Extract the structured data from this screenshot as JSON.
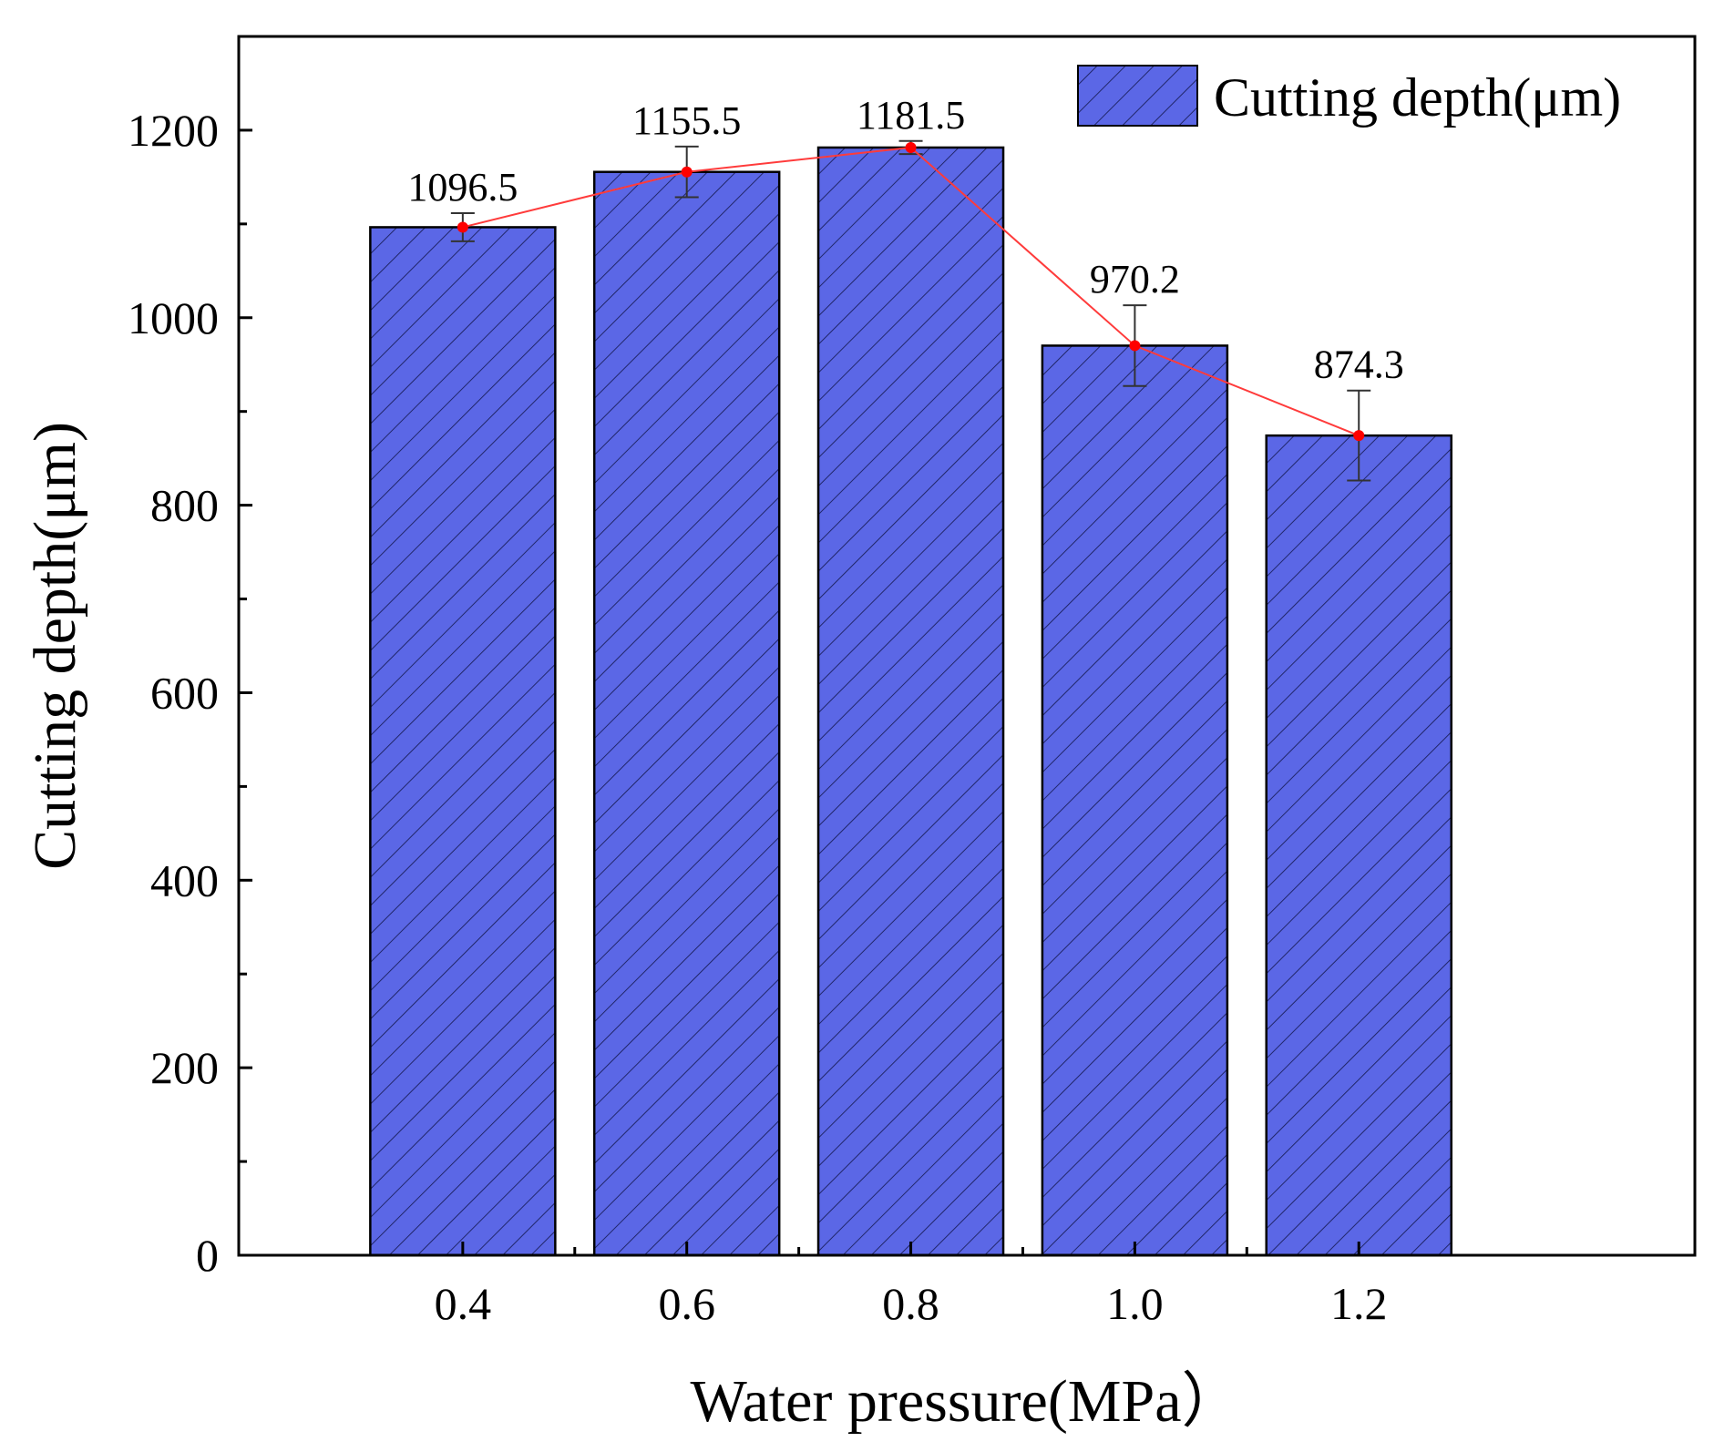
{
  "chart_data": {
    "type": "bar",
    "xlabel": "Water pressure(MPa）",
    "ylabel": "Cutting depth(μm)",
    "categories": [
      "0.4",
      "0.6",
      "0.8",
      "1.0",
      "1.2"
    ],
    "series": [
      {
        "name": "Cutting depth(μm)",
        "values": [
          1096.5,
          1155.5,
          1181.5,
          970.2,
          874.3
        ],
        "error": [
          15,
          27,
          7,
          43,
          48
        ],
        "data_labels": [
          "1096.5",
          "1155.5",
          "1181.5",
          "970.2",
          "874.3"
        ]
      }
    ],
    "ylim": [
      0,
      1300
    ],
    "yticks": [
      0,
      200,
      400,
      600,
      800,
      1000,
      1200
    ],
    "ytick_labels": [
      "0",
      "200",
      "400",
      "600",
      "800",
      "1000",
      "1200"
    ],
    "xlim": [
      0.2,
      1.5
    ],
    "legend": "top-right",
    "grid": false,
    "bar_pattern": "diagonal-hatch",
    "trend_line": true,
    "colors": {
      "bar_fill": "#5B67E6",
      "hatch": "#1a1f5c",
      "trend_line": "#ff3b3b",
      "marker": "#ff0000",
      "axis": "#000000",
      "error_bar": "#333333"
    }
  }
}
